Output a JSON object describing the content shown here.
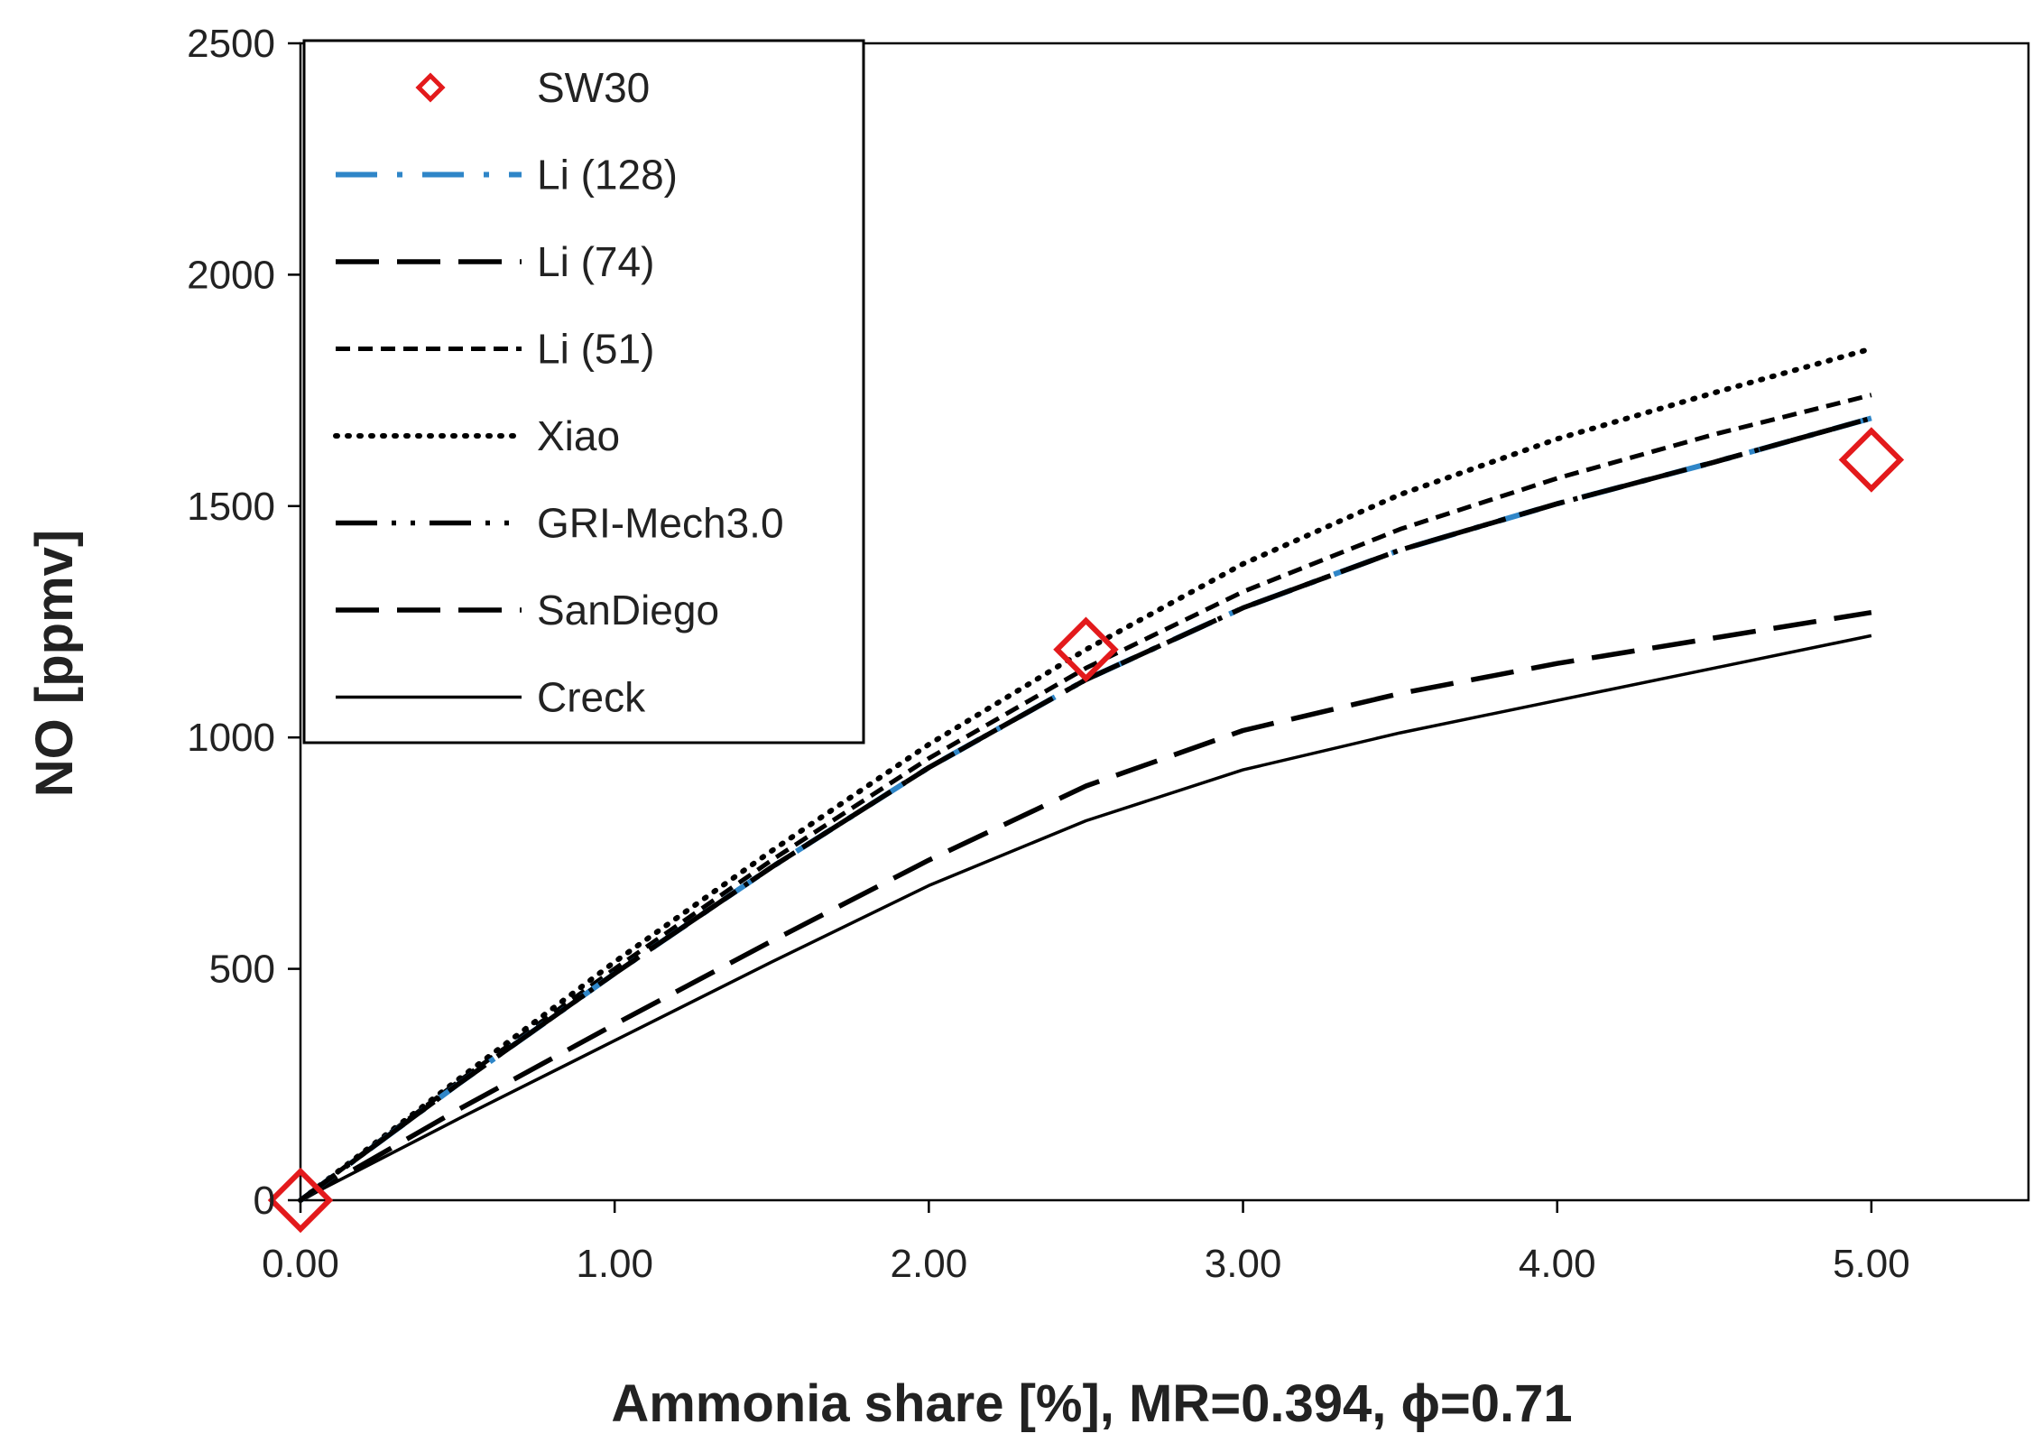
{
  "chart_data": {
    "type": "line",
    "title": "",
    "xlabel": "Ammonia share [%], MR=0.394, ϕ=0.71",
    "ylabel": "NO [ppmv]",
    "xlim": [
      0,
      5.5
    ],
    "ylim": [
      0,
      2500
    ],
    "x_ticks": [
      0,
      1,
      2,
      3,
      4,
      5
    ],
    "x_tick_labels": [
      "0.00",
      "1.00",
      "2.00",
      "3.00",
      "4.00",
      "5.00"
    ],
    "y_ticks": [
      0,
      500,
      1000,
      1500,
      2000,
      2500
    ],
    "y_tick_labels": [
      "0",
      "500",
      "1000",
      "1500",
      "2000",
      "2500"
    ],
    "grid": false,
    "legend_position": "top-left",
    "series": [
      {
        "name": "SW30",
        "kind": "markers",
        "marker": "diamond",
        "color": "#e31a1c",
        "x": [
          0,
          2.5,
          5
        ],
        "y": [
          0,
          1190,
          1600
        ]
      },
      {
        "name": "Li (128)",
        "kind": "line",
        "style": "dash-dot-blue",
        "color": "#2f86c8",
        "x": [
          0,
          0.5,
          1.0,
          1.5,
          2.0,
          2.5,
          3.0,
          3.5,
          4.0,
          4.5,
          5.0
        ],
        "y": [
          0,
          250,
          490,
          720,
          935,
          1125,
          1280,
          1405,
          1505,
          1595,
          1690
        ]
      },
      {
        "name": "Li (74)",
        "kind": "line",
        "style": "long-dash",
        "color": "#000000",
        "x": [
          0,
          0.5,
          1.0,
          1.5,
          2.0,
          2.5,
          3.0,
          3.5,
          4.0,
          4.5,
          5.0
        ],
        "y": [
          0,
          250,
          490,
          720,
          935,
          1125,
          1280,
          1405,
          1505,
          1595,
          1690
        ]
      },
      {
        "name": "Li (51)",
        "kind": "line",
        "style": "short-dash",
        "color": "#000000",
        "x": [
          0,
          0.5,
          1.0,
          1.5,
          2.0,
          2.5,
          3.0,
          3.5,
          4.0,
          4.5,
          5.0
        ],
        "y": [
          0,
          255,
          500,
          735,
          955,
          1150,
          1315,
          1450,
          1560,
          1655,
          1740
        ]
      },
      {
        "name": "Xiao",
        "kind": "line",
        "style": "dotted",
        "color": "#000000",
        "x": [
          0,
          0.5,
          1.0,
          1.5,
          2.0,
          2.5,
          3.0,
          3.5,
          4.0,
          4.5,
          5.0
        ],
        "y": [
          0,
          260,
          515,
          755,
          985,
          1190,
          1375,
          1525,
          1645,
          1745,
          1840
        ]
      },
      {
        "name": "GRI-Mech3.0",
        "kind": "line",
        "style": "dash-dot-dot",
        "color": "#000000",
        "x": [
          0,
          0.5,
          1.0,
          1.5,
          2.0,
          2.5,
          3.0,
          3.5,
          4.0,
          4.5,
          5.0
        ],
        "y": [
          0,
          250,
          490,
          720,
          935,
          1125,
          1280,
          1405,
          1505,
          1595,
          1690
        ]
      },
      {
        "name": "SanDiego",
        "kind": "line",
        "style": "long-dash",
        "color": "#000000",
        "x": [
          0,
          0.5,
          1.0,
          1.5,
          2.0,
          2.5,
          3.0,
          3.5,
          4.0,
          4.5,
          5.0
        ],
        "y": [
          0,
          195,
          380,
          560,
          735,
          895,
          1015,
          1095,
          1160,
          1215,
          1270
        ]
      },
      {
        "name": "Creck",
        "kind": "line",
        "style": "solid",
        "color": "#000000",
        "x": [
          0,
          0.5,
          1.0,
          1.5,
          2.0,
          2.5,
          3.0,
          3.5,
          4.0,
          4.5,
          5.0
        ],
        "y": [
          0,
          175,
          345,
          515,
          680,
          820,
          930,
          1010,
          1080,
          1150,
          1220
        ]
      }
    ]
  }
}
